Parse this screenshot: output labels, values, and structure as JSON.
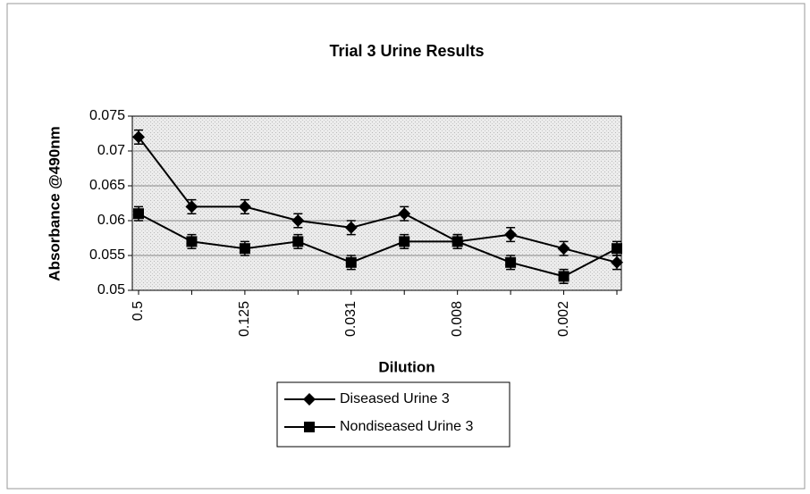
{
  "chart_data": {
    "type": "line",
    "title": "Trial 3 Urine Results",
    "x_label": "Dilution",
    "y_label": "Absorbance @490nm",
    "categories": [
      "0.5",
      null,
      "0.125",
      null,
      "0.031",
      null,
      "0.008",
      null,
      "0.002",
      null
    ],
    "series": [
      {
        "name": "Diseased Urine 3",
        "color": "#000000",
        "marker": "diamond",
        "values": [
          0.072,
          0.062,
          0.062,
          0.06,
          0.059,
          0.061,
          0.057,
          0.058,
          0.056,
          0.054
        ],
        "errors": [
          0.001,
          0.001,
          0.001,
          0.001,
          0.001,
          0.001,
          0.001,
          0.001,
          0.001,
          0.001
        ]
      },
      {
        "name": "Nondiseased Urine 3",
        "color": "#000000",
        "marker": "square",
        "values": [
          0.061,
          0.057,
          0.056,
          0.057,
          0.054,
          0.057,
          0.057,
          0.054,
          0.052,
          0.056
        ],
        "errors": [
          0.001,
          0.001,
          0.001,
          0.001,
          0.001,
          0.001,
          0.001,
          0.001,
          0.001,
          0.001
        ]
      }
    ],
    "ylim": [
      0.05,
      0.075
    ],
    "yticks": [
      0.05,
      0.055,
      0.06,
      0.065,
      0.07,
      0.075
    ],
    "grid": true,
    "legend": "bottom"
  }
}
